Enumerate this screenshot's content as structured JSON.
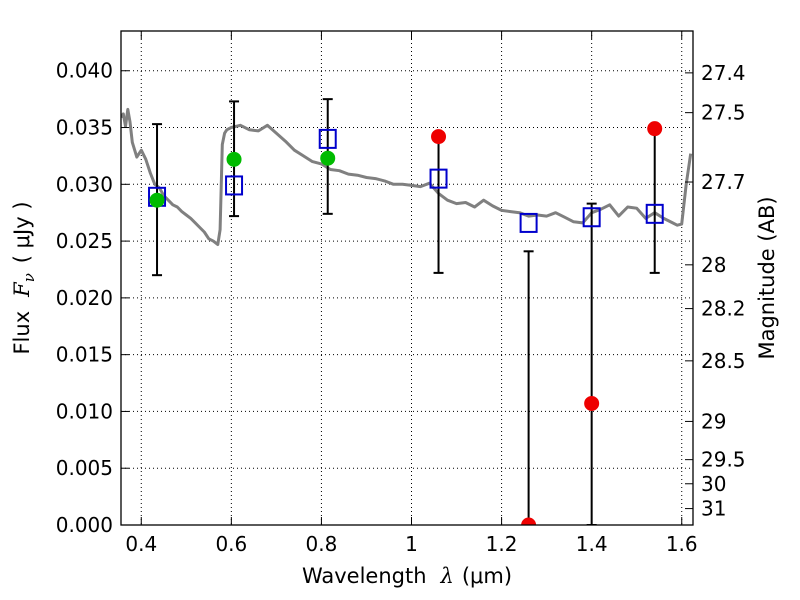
{
  "chart_data": {
    "type": "scatter",
    "xlabel_text": "Wavelength",
    "xlabel_sym": "λ",
    "xlabel_unit": "(μm)",
    "ylabel_text": "Flux",
    "ylabel_sym": "F",
    "ylabel_sub": "ν",
    "ylabel_unit": "( μJy )",
    "y2label": "Magnitude (AB)",
    "xlim": [
      0.355,
      1.625
    ],
    "ylim": [
      0.0,
      0.0435
    ],
    "grid": true,
    "x_ticks": [
      0.4,
      0.6,
      0.8,
      1.0,
      1.2,
      1.4,
      1.6
    ],
    "x_tick_labels": [
      "0.4",
      "0.6",
      "0.8",
      "1",
      "1.2",
      "1.4",
      "1.6"
    ],
    "y_ticks": [
      0.0,
      0.005,
      0.01,
      0.015,
      0.02,
      0.025,
      0.03,
      0.035,
      0.04
    ],
    "y_tick_labels": [
      "0.000",
      "0.005",
      "0.010",
      "0.015",
      "0.020",
      "0.025",
      "0.030",
      "0.035",
      "0.040"
    ],
    "mag_ticks": [
      27.4,
      27.5,
      27.7,
      28,
      28.2,
      28.5,
      29,
      29.5,
      30,
      31
    ],
    "mag_tick_labels": [
      "27.4",
      "27.5",
      "27.7",
      "28",
      "28.2",
      "28.5",
      "29",
      "29.5",
      "30",
      "31"
    ],
    "series": [
      {
        "kind": "model_spectrum",
        "color": "#808080",
        "x": [
          0.355,
          0.36,
          0.365,
          0.37,
          0.375,
          0.38,
          0.39,
          0.4,
          0.41,
          0.42,
          0.43,
          0.44,
          0.45,
          0.46,
          0.47,
          0.48,
          0.49,
          0.5,
          0.51,
          0.52,
          0.53,
          0.54,
          0.55,
          0.56,
          0.57,
          0.575,
          0.58,
          0.585,
          0.59,
          0.6,
          0.62,
          0.64,
          0.66,
          0.68,
          0.7,
          0.72,
          0.74,
          0.76,
          0.78,
          0.8,
          0.82,
          0.84,
          0.86,
          0.88,
          0.9,
          0.92,
          0.94,
          0.96,
          0.98,
          1.0,
          1.02,
          1.04,
          1.06,
          1.08,
          1.1,
          1.12,
          1.14,
          1.16,
          1.18,
          1.2,
          1.22,
          1.24,
          1.26,
          1.28,
          1.3,
          1.32,
          1.34,
          1.36,
          1.38,
          1.4,
          1.42,
          1.44,
          1.46,
          1.48,
          1.5,
          1.52,
          1.54,
          1.56,
          1.58,
          1.59,
          1.6,
          1.61,
          1.62
        ],
        "y": [
          0.0359,
          0.0362,
          0.0351,
          0.0366,
          0.0355,
          0.0337,
          0.0324,
          0.033,
          0.0322,
          0.031,
          0.03,
          0.0297,
          0.029,
          0.0286,
          0.0282,
          0.028,
          0.0276,
          0.0273,
          0.027,
          0.0266,
          0.0262,
          0.0258,
          0.0252,
          0.025,
          0.0247,
          0.026,
          0.0335,
          0.0345,
          0.0348,
          0.035,
          0.0352,
          0.0348,
          0.0347,
          0.0352,
          0.0345,
          0.0338,
          0.033,
          0.0325,
          0.032,
          0.0318,
          0.0313,
          0.0312,
          0.0309,
          0.0308,
          0.0306,
          0.0305,
          0.0303,
          0.03,
          0.03,
          0.0299,
          0.0298,
          0.0301,
          0.0292,
          0.0286,
          0.0283,
          0.0284,
          0.028,
          0.0286,
          0.0281,
          0.0277,
          0.0276,
          0.0275,
          0.0272,
          0.0273,
          0.0272,
          0.0275,
          0.0271,
          0.0267,
          0.0266,
          0.0275,
          0.0278,
          0.0282,
          0.0272,
          0.028,
          0.0279,
          0.027,
          0.0275,
          0.027,
          0.0266,
          0.0264,
          0.0265,
          0.03,
          0.0327
        ]
      },
      {
        "kind": "model_photometry",
        "marker": "open-square",
        "color": "#0000cc",
        "x": [
          0.435,
          0.606,
          0.814,
          1.06,
          1.26,
          1.4,
          1.54
        ],
        "y": [
          0.0289,
          0.0299,
          0.034,
          0.0305,
          0.0266,
          0.0271,
          0.0274
        ]
      },
      {
        "kind": "observed_detections",
        "marker": "filled-circle",
        "color": "#00bb00",
        "x": [
          0.435,
          0.606,
          0.814
        ],
        "y": [
          0.0286,
          0.0322,
          0.0323
        ],
        "yerr_low": [
          0.0066,
          0.005,
          0.0049
        ],
        "yerr_high": [
          0.0067,
          0.0051,
          0.0052
        ]
      },
      {
        "kind": "observed_nondetections",
        "marker": "filled-circle",
        "color": "#ee0000",
        "x": [
          1.06,
          1.26,
          1.4,
          1.54
        ],
        "y": [
          0.0342,
          0.0,
          0.0107,
          0.0349
        ],
        "yerr_low": [
          0.012,
          0.0,
          0.0107,
          0.0127
        ],
        "yerr_high": [
          0.0,
          0.0241,
          0.0176,
          0.0
        ]
      }
    ]
  }
}
